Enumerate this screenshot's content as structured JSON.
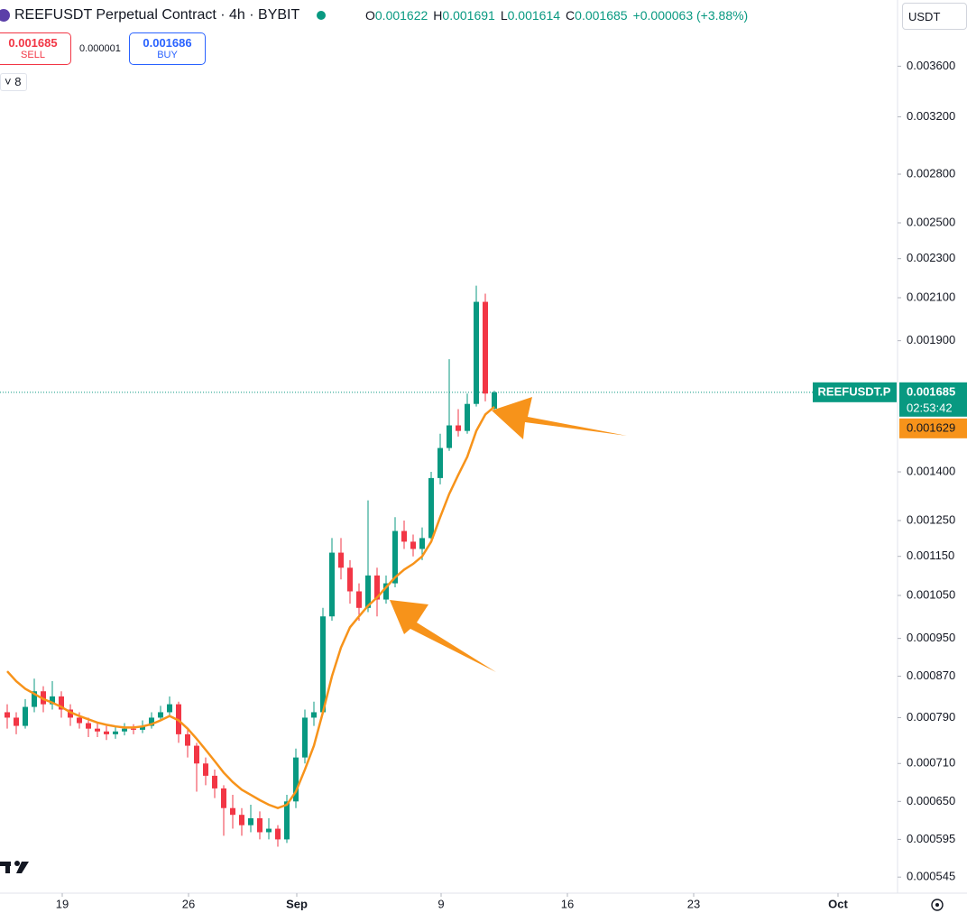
{
  "header": {
    "title": "REEFUSDT Perpetual Contract · 4h · BYBIT",
    "ohlc": [
      {
        "label": "O",
        "value": "0.001622"
      },
      {
        "label": "H",
        "value": "0.001691"
      },
      {
        "label": "L",
        "value": "0.001614"
      },
      {
        "label": "C",
        "value": "0.001685"
      }
    ],
    "change": "+0.000063 (+3.88%)",
    "currency": "USDT"
  },
  "trade": {
    "sell_price": "0.001685",
    "sell_label": "SELL",
    "spread": "0.000001",
    "buy_price": "0.001686",
    "buy_label": "BUY",
    "indicator_count": "8"
  },
  "chart_data": {
    "type": "candlestick",
    "log_scale": true,
    "grid": false,
    "xlim": [
      15.55,
      65.3
    ],
    "ylim": [
      0.000525,
      0.0042
    ],
    "xticks": [
      {
        "value": 19,
        "label": "19"
      },
      {
        "value": 26,
        "label": "26"
      },
      {
        "value": 32,
        "label": "Sep"
      },
      {
        "value": 40,
        "label": "9"
      },
      {
        "value": 47,
        "label": "16"
      },
      {
        "value": 54,
        "label": "23"
      },
      {
        "value": 62,
        "label": "Oct"
      }
    ],
    "yticks": [
      {
        "value": 0.0036,
        "label": "0.003600"
      },
      {
        "value": 0.0032,
        "label": "0.003200"
      },
      {
        "value": 0.0028,
        "label": "0.002800"
      },
      {
        "value": 0.0025,
        "label": "0.002500"
      },
      {
        "value": 0.0023,
        "label": "0.002300"
      },
      {
        "value": 0.0021,
        "label": "0.002100"
      },
      {
        "value": 0.0019,
        "label": "0.001900"
      },
      {
        "value": 0.0014,
        "label": "0.001400"
      },
      {
        "value": 0.00125,
        "label": "0.001250"
      },
      {
        "value": 0.00115,
        "label": "0.001150"
      },
      {
        "value": 0.00105,
        "label": "0.001050"
      },
      {
        "value": 0.00095,
        "label": "0.000950"
      },
      {
        "value": 0.00087,
        "label": "0.000870"
      },
      {
        "value": 0.00079,
        "label": "0.000790"
      },
      {
        "value": 0.00071,
        "label": "0.000710"
      },
      {
        "value": 0.00065,
        "label": "0.000650"
      },
      {
        "value": 0.000595,
        "label": "0.000595"
      },
      {
        "value": 0.000545,
        "label": "0.000545"
      }
    ],
    "candles": {
      "up_color": "#089981",
      "down_color": "#f23645",
      "x": [
        15.95,
        16.45,
        16.95,
        17.45,
        17.95,
        18.45,
        18.95,
        19.45,
        19.95,
        20.45,
        20.95,
        21.45,
        21.95,
        22.45,
        22.95,
        23.45,
        23.95,
        24.45,
        24.95,
        25.45,
        25.95,
        26.45,
        26.95,
        27.45,
        27.95,
        28.45,
        28.95,
        29.45,
        29.95,
        30.45,
        30.95,
        31.45,
        31.95,
        32.45,
        32.95,
        33.45,
        33.95,
        34.45,
        34.95,
        35.45,
        35.95,
        36.45,
        36.95,
        37.45,
        37.95,
        38.45,
        38.95,
        39.45,
        39.95,
        40.45,
        40.95,
        41.45,
        41.95,
        42.45,
        42.95
      ],
      "open": [
        0.0008,
        0.00079,
        0.000775,
        0.00081,
        0.00084,
        0.000815,
        0.00083,
        0.000805,
        0.00079,
        0.00078,
        0.00077,
        0.000765,
        0.00076,
        0.000765,
        0.00077,
        0.000768,
        0.000775,
        0.00079,
        0.0008,
        0.000815,
        0.00076,
        0.00074,
        0.00071,
        0.00069,
        0.00067,
        0.00064,
        0.00063,
        0.000615,
        0.000625,
        0.000605,
        0.00061,
        0.000595,
        0.00065,
        0.00072,
        0.00079,
        0.0008,
        0.001,
        0.00116,
        0.00112,
        0.00106,
        0.00102,
        0.0011,
        0.00104,
        0.00108,
        0.00122,
        0.00119,
        0.00117,
        0.0012,
        0.00138,
        0.00148,
        0.00156,
        0.00154,
        0.00164,
        0.00208,
        0.001622
      ],
      "high": [
        0.000815,
        0.0008,
        0.000825,
        0.000865,
        0.00085,
        0.00086,
        0.00084,
        0.000815,
        0.0008,
        0.00079,
        0.00078,
        0.000775,
        0.000775,
        0.00078,
        0.000778,
        0.000785,
        0.0008,
        0.000812,
        0.00083,
        0.00082,
        0.000768,
        0.000745,
        0.00072,
        0.0007,
        0.000675,
        0.00066,
        0.00064,
        0.000645,
        0.000635,
        0.000625,
        0.000615,
        0.00066,
        0.000735,
        0.000805,
        0.00082,
        0.00102,
        0.0012,
        0.0012,
        0.00114,
        0.00108,
        0.00131,
        0.00112,
        0.0011,
        0.00126,
        0.00125,
        0.00121,
        0.00123,
        0.0014,
        0.00153,
        0.00182,
        0.00162,
        0.00168,
        0.00216,
        0.00212,
        0.001691
      ],
      "low": [
        0.00077,
        0.00076,
        0.00077,
        0.0008,
        0.0008,
        0.000805,
        0.00079,
        0.000775,
        0.00077,
        0.000755,
        0.000755,
        0.00075,
        0.000752,
        0.000758,
        0.00076,
        0.000762,
        0.00077,
        0.000785,
        0.000795,
        0.000745,
        0.00072,
        0.000665,
        0.000675,
        0.000655,
        0.0006,
        0.00061,
        0.0006,
        0.000605,
        0.000595,
        0.000595,
        0.000585,
        0.00059,
        0.00064,
        0.00071,
        0.000775,
        0.000795,
        0.00099,
        0.00109,
        0.00103,
        0.00099,
        0.00101,
        0.001,
        0.00103,
        0.00107,
        0.00117,
        0.00115,
        0.00114,
        0.00119,
        0.00136,
        0.00147,
        0.00152,
        0.00153,
        0.00163,
        0.00165,
        0.001614
      ],
      "close": [
        0.00079,
        0.000775,
        0.00081,
        0.00084,
        0.000815,
        0.00083,
        0.000805,
        0.00079,
        0.00078,
        0.00077,
        0.000765,
        0.00076,
        0.000765,
        0.00077,
        0.000768,
        0.000775,
        0.00079,
        0.0008,
        0.000815,
        0.00076,
        0.00074,
        0.00071,
        0.00069,
        0.00067,
        0.00064,
        0.00063,
        0.000615,
        0.000625,
        0.000605,
        0.00061,
        0.000595,
        0.00065,
        0.00072,
        0.00079,
        0.0008,
        0.001,
        0.00116,
        0.00112,
        0.00106,
        0.00102,
        0.0011,
        0.00104,
        0.00108,
        0.00122,
        0.00119,
        0.00117,
        0.0012,
        0.00138,
        0.00148,
        0.00156,
        0.00154,
        0.00164,
        0.00208,
        0.00168,
        0.001685
      ]
    },
    "ma": {
      "color": "#f7931a",
      "values": [
        0.00088,
        0.00086,
        0.000845,
        0.000835,
        0.000825,
        0.000818,
        0.00081,
        0.0008,
        0.000793,
        0.000787,
        0.000781,
        0.000777,
        0.000774,
        0.000772,
        0.000772,
        0.000774,
        0.000778,
        0.000785,
        0.000793,
        0.000785,
        0.00077,
        0.000752,
        0.000733,
        0.000714,
        0.000695,
        0.00068,
        0.000668,
        0.00066,
        0.000652,
        0.000645,
        0.00064,
        0.000645,
        0.000665,
        0.0007,
        0.00074,
        0.0008,
        0.00087,
        0.00093,
        0.000975,
        0.001,
        0.001025,
        0.001045,
        0.00107,
        0.001095,
        0.001115,
        0.00113,
        0.00115,
        0.00119,
        0.00126,
        0.00133,
        0.00139,
        0.00145,
        0.00154,
        0.0016,
        0.001629
      ]
    },
    "last_price": 0.001685,
    "symbol_tag": "REEFUSDT.P",
    "countdown": "02:53:42",
    "ma_last": 0.001629
  }
}
